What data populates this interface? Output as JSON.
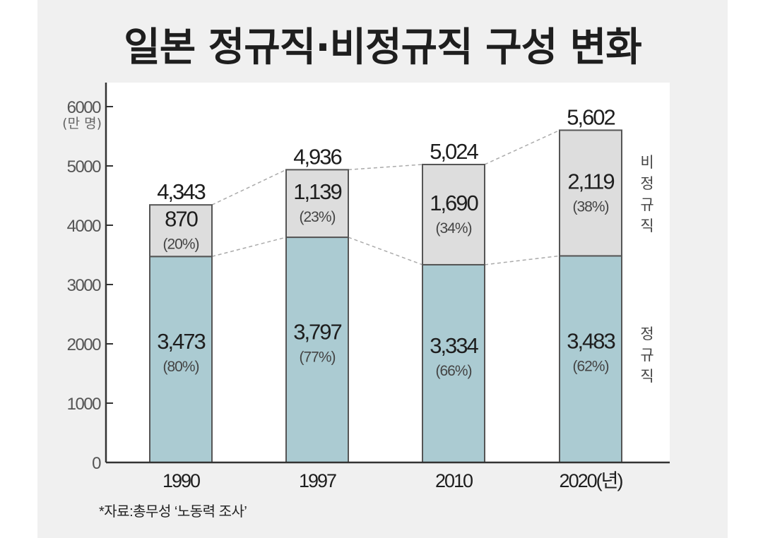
{
  "title": "일본 정규직·비정규직 구성 변화",
  "source": "*자료:총무성 ‘노동력 조사’",
  "chart_data": {
    "type": "bar",
    "stacked": true,
    "title": "일본 정규직·비정규직 구성 변화",
    "categories": [
      "1990",
      "1997",
      "2010",
      "2020(년)"
    ],
    "series": [
      {
        "name": "정규직",
        "values": [
          3473,
          3797,
          3334,
          3483
        ],
        "labels": [
          "3,473",
          "3,797",
          "3,334",
          "3,483"
        ],
        "percents": [
          "(80%)",
          "(77%)",
          "(66%)",
          "(62%)"
        ],
        "color": "#abcbd2"
      },
      {
        "name": "비정규직",
        "values": [
          870,
          1139,
          1690,
          2119
        ],
        "labels": [
          "870",
          "1,139",
          "1,690",
          "2,119"
        ],
        "percents": [
          "(20%)",
          "(23%)",
          "(34%)",
          "(38%)"
        ],
        "color": "#dddddd"
      }
    ],
    "totals": [
      4343,
      4936,
      5024,
      5602
    ],
    "total_labels": [
      "4,343",
      "4,936",
      "5,024",
      "5,602"
    ],
    "ylabel": "(만 명)",
    "ylim": [
      0,
      6000
    ],
    "yticks": [
      0,
      1000,
      2000,
      3000,
      4000,
      5000,
      6000
    ],
    "ytick_labels": [
      "0",
      "1000",
      "2000",
      "3000",
      "4000",
      "5000",
      "6000"
    ],
    "legend": [
      "비정규직",
      "정규직"
    ],
    "legend_placement": "right"
  }
}
